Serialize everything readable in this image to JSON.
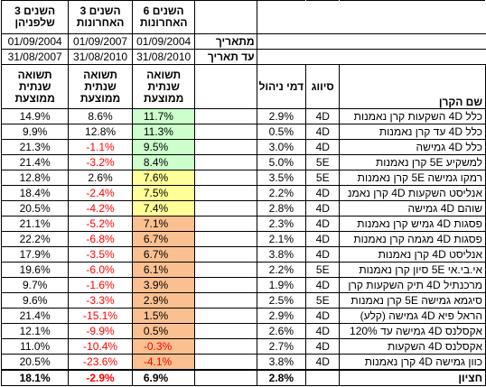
{
  "table": {
    "period_headers": [
      [
        "3 השנים",
        "שלפניהן"
      ],
      [
        "3 השנים",
        "האחרונות"
      ],
      [
        "6 השנים",
        "האחרונות"
      ]
    ],
    "from_label": "מתאריך",
    "to_label": "עד תאריך",
    "from_dates": [
      "01/09/2004",
      "01/09/2007",
      "01/09/2004"
    ],
    "to_dates": [
      "31/08/2007",
      "31/08/2010",
      "31/08/2010"
    ],
    "return_header": [
      [
        "תשואה",
        "שנתית",
        "ממוצעת"
      ],
      [
        "תשואה",
        "שנתית",
        "ממוצעת"
      ],
      [
        "תשואה",
        "שנתית",
        "ממוצעת"
      ]
    ],
    "fee_header": "דמי ניהול",
    "class_header": "סיווג",
    "name_header": "שם הקרן",
    "rows": [
      {
        "name": "כלל 4D השקעות קרן נאמנות",
        "class": "4D",
        "fee": "2.9%",
        "six_years": "11.7%",
        "last_three": "8.6%",
        "prior_three": "14.9%",
        "band": "#ccffcc"
      },
      {
        "name": "כלל 4D עד קרן נאמנות",
        "class": "4D",
        "fee": "0.5%",
        "six_years": "11.3%",
        "last_three": "12.8%",
        "prior_three": "9.9%",
        "band": "#ccffcc"
      },
      {
        "name": "כלל 4D גמישה",
        "class": "4D",
        "fee": "3.0%",
        "six_years": "9.5%",
        "last_three": "-1.1%",
        "prior_three": "21.3%",
        "band": "#ccffcc"
      },
      {
        "name": "למשקיע 5E קרן נאמנות",
        "class": "5E",
        "fee": "5.0%",
        "six_years": "8.4%",
        "last_three": "-3.2%",
        "prior_three": "21.4%",
        "band": "#ccffcc"
      },
      {
        "name": "רמקו גמישה 5E קרן נאמנות",
        "class": "5E",
        "fee": "3.5%",
        "six_years": "7.6%",
        "last_three": "2.6%",
        "prior_three": "12.8%",
        "band": "#ffff99"
      },
      {
        "name": "אנליסט השקעות 4D קרן נאמנ",
        "class": "4D",
        "fee": "2.2%",
        "six_years": "7.5%",
        "last_three": "-2.4%",
        "prior_three": "18.4%",
        "band": "#ffff99"
      },
      {
        "name": "שוהם 4D גמישה",
        "class": "4D",
        "fee": "2.8%",
        "six_years": "7.4%",
        "last_three": "-4.2%",
        "prior_three": "20.5%",
        "band": "#ffff99"
      },
      {
        "name": "פסגות 4D גמיש קרן נאמנות",
        "class": "4D",
        "fee": "2.3%",
        "six_years": "7.1%",
        "last_three": "-5.2%",
        "prior_three": "21.1%",
        "band": "#fac090"
      },
      {
        "name": "פסגות 4D מגמה קרן נאמנות",
        "class": "4D",
        "fee": "2.1%",
        "six_years": "6.7%",
        "last_three": "-6.8%",
        "prior_three": "22.2%",
        "band": "#fac090"
      },
      {
        "name": "אנליסט 4D קרן נאמנות",
        "class": "4D",
        "fee": "3.8%",
        "six_years": "6.7%",
        "last_three": "-3.5%",
        "prior_three": "17.9%",
        "band": "#fac090"
      },
      {
        "name": "אי.בי.אי 5E סיון קרן נאמנות",
        "class": "5E",
        "fee": "2.2%",
        "six_years": "6.1%",
        "last_three": "-6.0%",
        "prior_three": "19.6%",
        "band": "#fac090"
      },
      {
        "name": "מרכנתיל 4D תיק השקעות קרן",
        "class": "4D",
        "fee": "1.9%",
        "six_years": "3.9%",
        "last_three": "-1.6%",
        "prior_three": "9.7%",
        "band": "#fac090"
      },
      {
        "name": "סיגמא גמישה 5E קרן נאמנות",
        "class": "5E",
        "fee": "2.5%",
        "six_years": "2.9%",
        "last_three": "-3.3%",
        "prior_three": "9.6%",
        "band": "#fac090"
      },
      {
        "name": "הראל פיא 4D גמישה (קלע)",
        "class": "4D",
        "fee": "2.9%",
        "six_years": "1.5%",
        "last_three": "-15.1%",
        "prior_three": "21.4%",
        "band": "#fac090"
      },
      {
        "name": "אקסלנס 4D גמישה עד 120%",
        "class": "4D",
        "fee": "2.6%",
        "six_years": "0.5%",
        "last_three": "-9.9%",
        "prior_three": "12.1%",
        "band": "#fac090"
      },
      {
        "name": "אקסלנס 4D השקעות",
        "class": "4D",
        "fee": "2.7%",
        "six_years": "-0.3%",
        "last_three": "-10.4%",
        "prior_three": "11.0%",
        "band": "#fac090"
      },
      {
        "name": "כוון גמישה 4D קרן נאמנות",
        "class": "4D",
        "fee": "3.8%",
        "six_years": "-4.1%",
        "last_three": "-23.6%",
        "prior_three": "20.5%",
        "band": "#fac090"
      }
    ],
    "summary": {
      "label": "חציון",
      "fee": "2.8%",
      "six_years": "6.9%",
      "last_three": "-2.9%",
      "prior_three": "18.1%"
    }
  }
}
